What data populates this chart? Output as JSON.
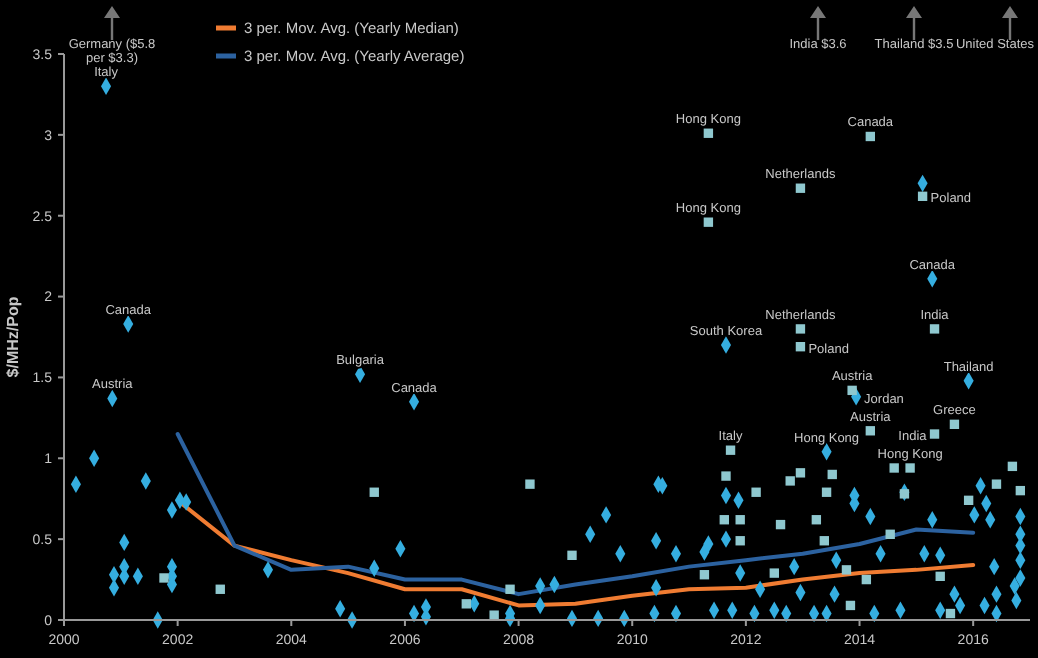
{
  "chart_data": {
    "type": "scatter",
    "ylabel": "$/MHz/Pop",
    "xlim": [
      2000,
      2017
    ],
    "xticks": [
      2000,
      2002,
      2004,
      2006,
      2008,
      2010,
      2012,
      2014,
      2016
    ],
    "ylim": [
      0,
      3.5
    ],
    "yticks": [
      0,
      0.5,
      1,
      1.5,
      2,
      2.5,
      3,
      3.5
    ],
    "grid": false,
    "legend": "top",
    "series": [
      {
        "marker": "diamond",
        "color": "#35aee0",
        "x": [
          2000.21,
          2000.53,
          2000.74,
          2000.85,
          2000.88,
          2000.88,
          2001.06,
          2001.06,
          2001.06,
          2001.13,
          2001.3,
          2001.44,
          2001.65,
          2001.9,
          2001.9,
          2001.9,
          2001.9,
          2002.04,
          2002.15,
          2003.59,
          2004.86,
          2005.07,
          2005.21,
          2005.46,
          2005.92,
          2006.16,
          2006.16,
          2006.37,
          2006.37,
          2007.22,
          2007.85,
          2007.85,
          2008.38,
          2008.38,
          2008.63,
          2008.94,
          2009.26,
          2009.4,
          2009.54,
          2009.79,
          2009.86,
          2010.39,
          2010.42,
          2010.42,
          2010.46,
          2010.53,
          2010.77,
          2010.77,
          2011.27,
          2011.34,
          2011.44,
          2011.65,
          2011.65,
          2011.65,
          2011.76,
          2011.87,
          2011.9,
          2012.15,
          2012.25,
          2012.5,
          2012.71,
          2012.85,
          2012.96,
          2013.2,
          2013.42,
          2013.42,
          2013.56,
          2013.59,
          2013.91,
          2013.91,
          2013.94,
          2014.19,
          2014.26,
          2014.37,
          2014.72,
          2014.79,
          2015.11,
          2015.14,
          2015.28,
          2015.28,
          2015.42,
          2015.42,
          2015.67,
          2015.77,
          2015.92,
          2016.02,
          2016.13,
          2016.2,
          2016.23,
          2016.3,
          2016.37,
          2016.41,
          2016.41,
          2016.73,
          2016.76,
          2016.83,
          2016.83,
          2016.83,
          2016.83,
          2016.83
        ],
        "values": [
          0.84,
          1.0,
          3.3,
          1.37,
          0.2,
          0.28,
          0.27,
          0.33,
          0.48,
          1.83,
          0.27,
          0.86,
          0.0,
          0.68,
          0.33,
          0.27,
          0.22,
          0.74,
          0.73,
          0.31,
          0.07,
          0.0,
          1.52,
          0.32,
          0.44,
          0.04,
          1.35,
          0.08,
          0.02,
          0.1,
          0.04,
          0.01,
          0.21,
          0.09,
          0.22,
          0.01,
          0.53,
          0.01,
          0.65,
          0.41,
          0.01,
          0.04,
          0.49,
          0.2,
          0.84,
          0.83,
          0.41,
          0.04,
          0.42,
          0.47,
          0.06,
          0.77,
          0.5,
          1.7,
          0.06,
          0.74,
          0.29,
          0.04,
          0.19,
          0.06,
          0.04,
          0.33,
          0.17,
          0.04,
          0.04,
          1.04,
          0.16,
          0.37,
          0.77,
          0.72,
          1.38,
          0.64,
          0.04,
          0.41,
          0.06,
          0.79,
          2.7,
          0.41,
          0.62,
          2.11,
          0.4,
          0.06,
          0.16,
          0.09,
          1.48,
          0.65,
          0.83,
          0.09,
          0.72,
          0.62,
          0.33,
          0.16,
          0.04,
          0.21,
          0.12,
          0.64,
          0.53,
          0.46,
          0.37,
          0.26
        ]
      },
      {
        "marker": "square",
        "color": "#8fc8cf",
        "x": [
          2001.76,
          2002.75,
          2005.46,
          2007.08,
          2007.57,
          2007.85,
          2008.2,
          2008.94,
          2011.27,
          2011.34,
          2011.34,
          2011.62,
          2011.65,
          2011.73,
          2011.9,
          2011.9,
          2012.18,
          2012.5,
          2012.61,
          2012.78,
          2012.96,
          2012.96,
          2012.96,
          2012.96,
          2013.24,
          2013.38,
          2013.42,
          2013.52,
          2013.77,
          2013.84,
          2013.87,
          2014.12,
          2014.19,
          2014.19,
          2014.54,
          2014.61,
          2014.79,
          2014.89,
          2015.11,
          2015.32,
          2015.32,
          2015.42,
          2015.6,
          2015.67,
          2015.92,
          2016.41,
          2016.69,
          2016.83
        ],
        "values": [
          0.26,
          0.19,
          0.79,
          0.1,
          0.03,
          0.19,
          0.84,
          0.4,
          0.28,
          3.01,
          2.46,
          0.62,
          0.89,
          1.05,
          0.62,
          0.49,
          0.79,
          0.29,
          0.59,
          0.86,
          0.91,
          2.67,
          1.8,
          1.69,
          0.62,
          0.49,
          0.79,
          0.9,
          0.31,
          0.09,
          1.42,
          0.25,
          2.99,
          1.17,
          0.53,
          0.94,
          0.78,
          0.94,
          2.62,
          1.8,
          1.15,
          0.27,
          0.04,
          1.21,
          0.74,
          0.84,
          0.95,
          0.8
        ]
      },
      {
        "type": "line",
        "marker": "none",
        "name": "3 per. Mov. Avg. (Yearly Median)",
        "color": "#f07c32",
        "x": [
          2002,
          2003,
          2004,
          2005,
          2006,
          2007,
          2008,
          2009,
          2010,
          2011,
          2012,
          2013,
          2014,
          2015,
          2016
        ],
        "values": [
          0.74,
          0.46,
          0.37,
          0.29,
          0.19,
          0.19,
          0.09,
          0.1,
          0.15,
          0.19,
          0.2,
          0.25,
          0.29,
          0.31,
          0.34
        ]
      },
      {
        "type": "line",
        "marker": "none",
        "name": "3 per. Mov. Avg. (Yearly Average)",
        "color": "#2c62a0",
        "x": [
          2002,
          2003,
          2004,
          2005,
          2006,
          2007,
          2008,
          2009,
          2010,
          2011,
          2012,
          2013,
          2014,
          2015,
          2016
        ],
        "values": [
          1.15,
          0.46,
          0.31,
          0.33,
          0.25,
          0.25,
          0.16,
          0.22,
          0.27,
          0.33,
          0.37,
          0.41,
          0.47,
          0.56,
          0.54
        ]
      }
    ],
    "annotations": [
      "Germany ($5.8 per $3.3)",
      "India $3.6",
      "Thailand $3.5",
      "United States",
      {
        "text": "Italy",
        "x": 2000.74,
        "y": 3.3
      },
      {
        "text": "Canada",
        "x": 2001.13,
        "y": 1.83
      },
      {
        "text": "Austria",
        "x": 2000.85,
        "y": 1.37
      },
      {
        "text": "Bulgaria",
        "x": 2005.21,
        "y": 1.52
      },
      {
        "text": "Canada",
        "x": 2006.16,
        "y": 1.35
      },
      {
        "text": "Hong Kong",
        "x": 2011.34,
        "y": 3.01
      },
      {
        "text": "Canada",
        "x": 2014.19,
        "y": 2.99
      },
      {
        "text": "Netherlands",
        "x": 2012.96,
        "y": 2.67
      },
      {
        "text": "Poland",
        "x": 2015.11,
        "y": 2.62
      },
      {
        "text": "Hong Kong",
        "x": 2011.34,
        "y": 2.46
      },
      {
        "text": "Canada",
        "x": 2015.28,
        "y": 2.11
      },
      {
        "text": "Netherlands",
        "x": 2012.96,
        "y": 1.8
      },
      {
        "text": "India",
        "x": 2015.32,
        "y": 1.8
      },
      {
        "text": "South Korea",
        "x": 2011.65,
        "y": 1.7
      },
      {
        "text": "Poland",
        "x": 2012.96,
        "y": 1.69
      },
      {
        "text": "Thailand",
        "x": 2015.92,
        "y": 1.48
      },
      {
        "text": "Austria",
        "x": 2013.87,
        "y": 1.42
      },
      {
        "text": "Jordan",
        "x": 2013.94,
        "y": 1.38
      },
      {
        "text": "Austria",
        "x": 2014.19,
        "y": 1.17
      },
      {
        "text": "Greece",
        "x": 2015.67,
        "y": 1.21
      },
      {
        "text": "India",
        "x": 2015.32,
        "y": 1.15
      },
      {
        "text": "Italy",
        "x": 2011.73,
        "y": 1.05
      },
      {
        "text": "Hong Kong",
        "x": 2013.42,
        "y": 1.04
      },
      {
        "text": "Hong Kong",
        "x": 2014.89,
        "y": 0.94
      }
    ]
  }
}
